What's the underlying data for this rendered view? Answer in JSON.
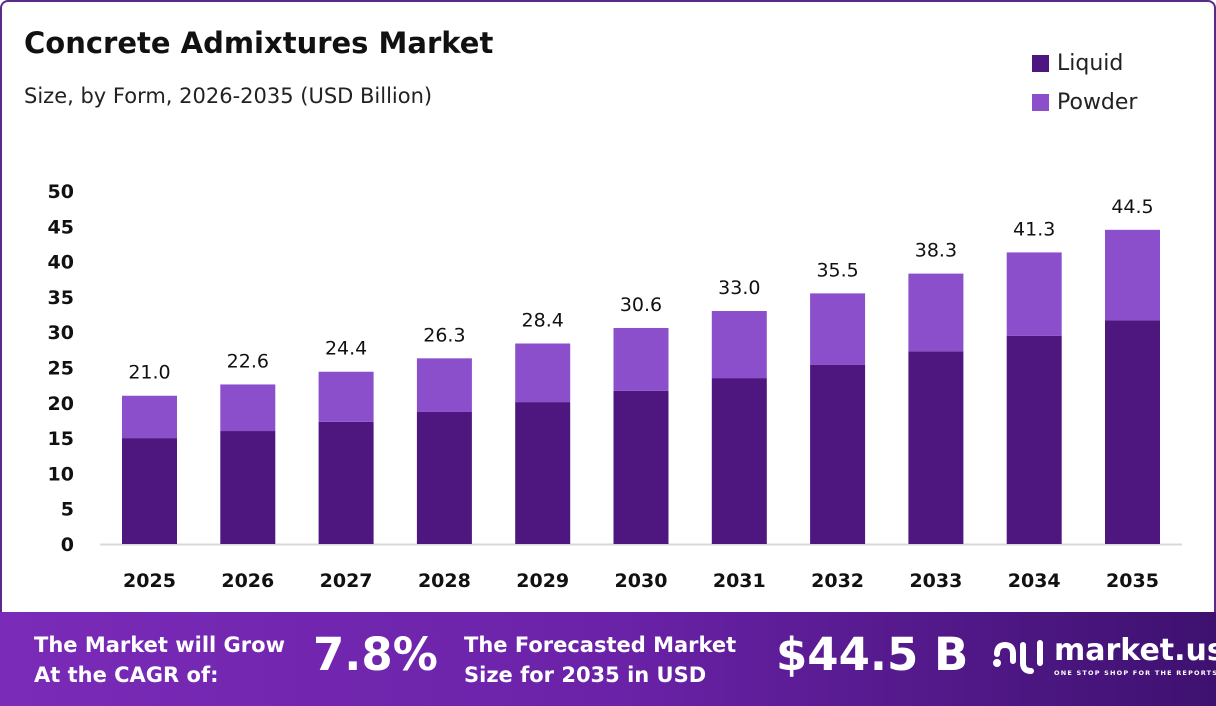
{
  "chart_data": {
    "type": "bar",
    "stacked": true,
    "title": "Concrete Admixtures Market",
    "subtitle": "Size, by Form, 2026-2035 (USD Billion)",
    "categories": [
      "2025",
      "2026",
      "2027",
      "2028",
      "2029",
      "2030",
      "2031",
      "2032",
      "2033",
      "2034",
      "2035"
    ],
    "series": [
      {
        "name": "Liquid",
        "color": "#4e177f",
        "values": [
          15.0,
          16.0,
          17.3,
          18.7,
          20.1,
          21.7,
          23.5,
          25.4,
          27.3,
          29.5,
          31.7
        ]
      },
      {
        "name": "Powder",
        "color": "#8c4fcc",
        "values": [
          6.0,
          6.6,
          7.1,
          7.6,
          8.3,
          8.9,
          9.5,
          10.1,
          11.0,
          11.8,
          12.8
        ]
      }
    ],
    "totals": [
      "21.0",
      "22.6",
      "24.4",
      "26.3",
      "28.4",
      "30.6",
      "33.0",
      "35.5",
      "38.3",
      "41.3",
      "44.5"
    ],
    "ylim": [
      0,
      50
    ],
    "yticks": [
      "0",
      "5",
      "10",
      "15",
      "20",
      "25",
      "30",
      "35",
      "40",
      "45",
      "50"
    ],
    "grid": false,
    "legend": "top-right"
  },
  "footer": {
    "cagr_label_1": "The Market will Grow",
    "cagr_label_2": "At the CAGR of:",
    "cagr_value": "7.8%",
    "forecast_label_1": "The Forecasted Market",
    "forecast_label_2": "Size for 2035 in USD",
    "forecast_value": "$44.5 B",
    "logo_name": "market.us",
    "logo_tagline": "ONE STOP SHOP FOR THE REPORTS"
  }
}
